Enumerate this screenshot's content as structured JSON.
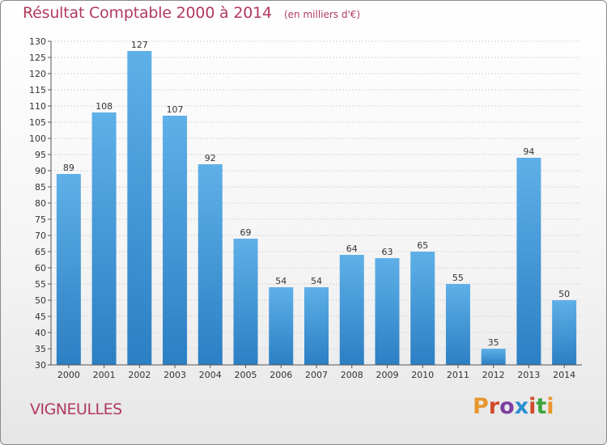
{
  "chart_data": {
    "type": "bar",
    "title": "Résultat Comptable 2000 à 2014",
    "subtitle": "(en milliers d'€)",
    "categories": [
      "2000",
      "2001",
      "2002",
      "2003",
      "2004",
      "2005",
      "2006",
      "2007",
      "2008",
      "2009",
      "2010",
      "2011",
      "2012",
      "2013",
      "2014"
    ],
    "values": [
      89,
      108,
      127,
      107,
      92,
      69,
      54,
      54,
      64,
      63,
      65,
      55,
      35,
      94,
      50
    ],
    "ylim": [
      30,
      130
    ],
    "ytick_step": 5,
    "grid": "horizontal",
    "xlabel": "",
    "ylabel": ""
  },
  "location": "VIGNEULLES",
  "brand": {
    "letters": [
      "P",
      "r",
      "o",
      "x",
      "i",
      "t",
      "i"
    ],
    "colors": [
      "#e8962d",
      "#d24a2c",
      "#7b3fa0",
      "#2a8fd0",
      "#d24a2c",
      "#3aa53a",
      "#e8962d"
    ]
  },
  "colors": {
    "bar_top": "#5fb0e8",
    "bar_bottom": "#2b7fc3",
    "title": "#b03a5e"
  }
}
